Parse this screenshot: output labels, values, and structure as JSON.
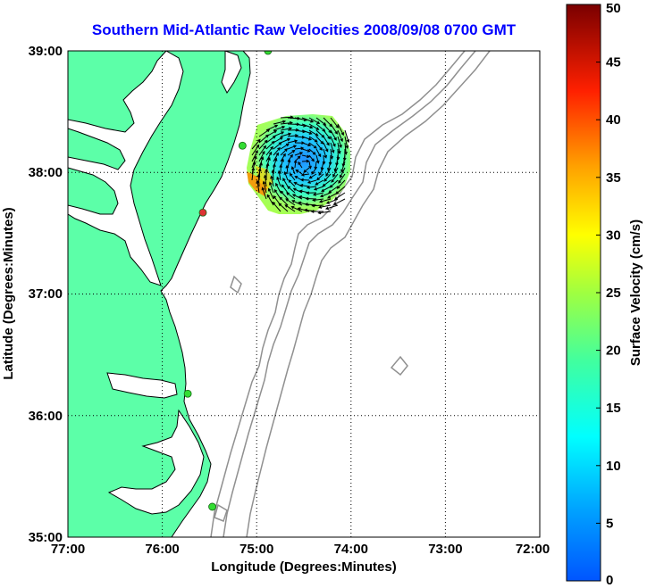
{
  "title": "Southern Mid-Atlantic Raw Velocities 2008/09/08 0700 GMT",
  "map": {
    "xlabel": "Longitude (Degrees:Minutes)",
    "ylabel": "Latitude (Degrees:Minutes)",
    "lon_ticks": [
      "77:00",
      "76:00",
      "75:00",
      "74:00",
      "73:00",
      "72:00"
    ],
    "lat_ticks": [
      "39:00",
      "38:00",
      "37:00",
      "36:00",
      "35:00"
    ],
    "lon_range": [
      -77,
      -72
    ],
    "lat_range": [
      35,
      39
    ],
    "land_color": "#5cffa8",
    "grid": "dotted"
  },
  "colorbar": {
    "label": "Surface Velocity (cm/s)",
    "ticks": [
      "50",
      "45",
      "40",
      "35",
      "30",
      "25",
      "20",
      "15",
      "10",
      "5",
      "0"
    ],
    "range": [
      0,
      50
    ],
    "colormap": "jet"
  },
  "stations": [
    {
      "lon": -74.88,
      "lat": 39.0,
      "color": "#33dd33"
    },
    {
      "lon": -75.15,
      "lat": 38.22,
      "color": "#33dd33"
    },
    {
      "lon": -75.57,
      "lat": 37.67,
      "color": "#dd3333"
    },
    {
      "lon": -75.73,
      "lat": 36.18,
      "color": "#33dd33"
    },
    {
      "lon": -75.47,
      "lat": 35.25,
      "color": "#33dd33"
    }
  ]
}
